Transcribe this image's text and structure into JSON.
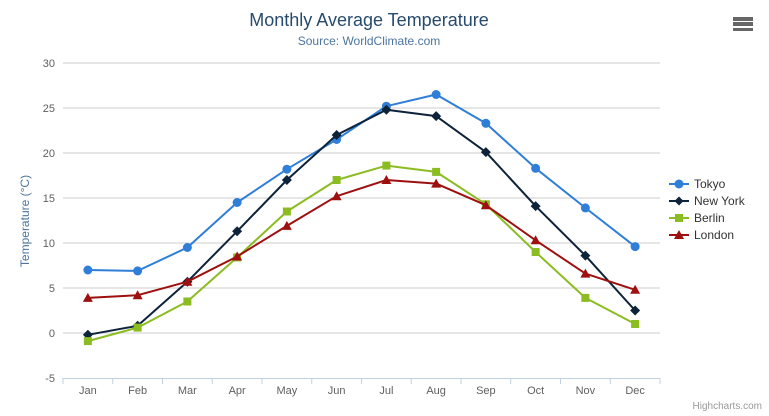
{
  "title": "Monthly Average Temperature",
  "subtitle": "Source: WorldClimate.com",
  "credits": "Highcharts.com",
  "export_menu": {
    "icon": "hamburger-icon"
  },
  "colors": {
    "title": "#274b6d",
    "subtitle": "#4d759e",
    "axis_title": "#4d759e",
    "axis_labels": "#606060",
    "gridline": "#cccccc",
    "axis_line": "#c0d0e0",
    "legend_text": "#333333",
    "credits_text": "#999999",
    "export_icon": "#666666"
  },
  "chart_data": {
    "type": "line",
    "title": "Monthly Average Temperature",
    "subtitle": "Source: WorldClimate.com",
    "categories": [
      "Jan",
      "Feb",
      "Mar",
      "Apr",
      "May",
      "Jun",
      "Jul",
      "Aug",
      "Sep",
      "Oct",
      "Nov",
      "Dec"
    ],
    "series": [
      {
        "name": "Tokyo",
        "color": "#2f7ed8",
        "marker": "circle",
        "values": [
          7.0,
          6.9,
          9.5,
          14.5,
          18.2,
          21.5,
          25.2,
          26.5,
          23.3,
          18.3,
          13.9,
          9.6
        ]
      },
      {
        "name": "New York",
        "color": "#0d233a",
        "marker": "diamond",
        "values": [
          -0.2,
          0.8,
          5.7,
          11.3,
          17.0,
          22.0,
          24.8,
          24.1,
          20.1,
          14.1,
          8.6,
          2.5
        ]
      },
      {
        "name": "Berlin",
        "color": "#8bbc21",
        "marker": "square",
        "values": [
          -0.9,
          0.6,
          3.5,
          8.4,
          13.5,
          17.0,
          18.6,
          17.9,
          14.3,
          9.0,
          3.9,
          1.0
        ]
      },
      {
        "name": "London",
        "color": "#9e1010",
        "marker": "triangle",
        "values": [
          3.9,
          4.2,
          5.7,
          8.5,
          11.9,
          15.2,
          17.0,
          16.6,
          14.2,
          10.3,
          6.6,
          4.8
        ]
      }
    ],
    "xlabel": "",
    "ylabel": "Temperature (°C)",
    "ylim": [
      -5,
      30
    ],
    "yticks": [
      -5,
      0,
      5,
      10,
      15,
      20,
      25,
      30
    ],
    "grid": "horizontal",
    "legend_position": "right"
  }
}
